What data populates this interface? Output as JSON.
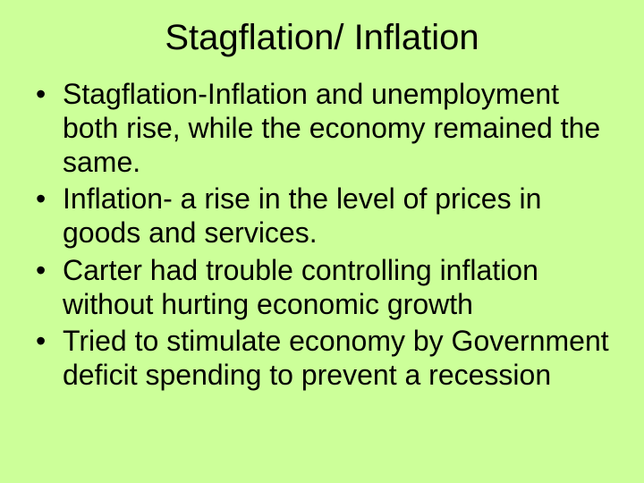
{
  "slide": {
    "title": "Stagflation/ Inflation",
    "bullets": [
      "Stagflation-Inflation and unemployment both rise, while the economy remained the same.",
      "Inflation- a rise in the level of prices in goods and services.",
      "Carter had trouble controlling inflation without hurting economic growth",
      "Tried to stimulate economy by Government deficit spending to prevent a recession"
    ],
    "background_color": "#ccff99",
    "text_color": "#000000",
    "title_fontsize": 40,
    "body_fontsize": 32,
    "font_family": "Arial"
  }
}
